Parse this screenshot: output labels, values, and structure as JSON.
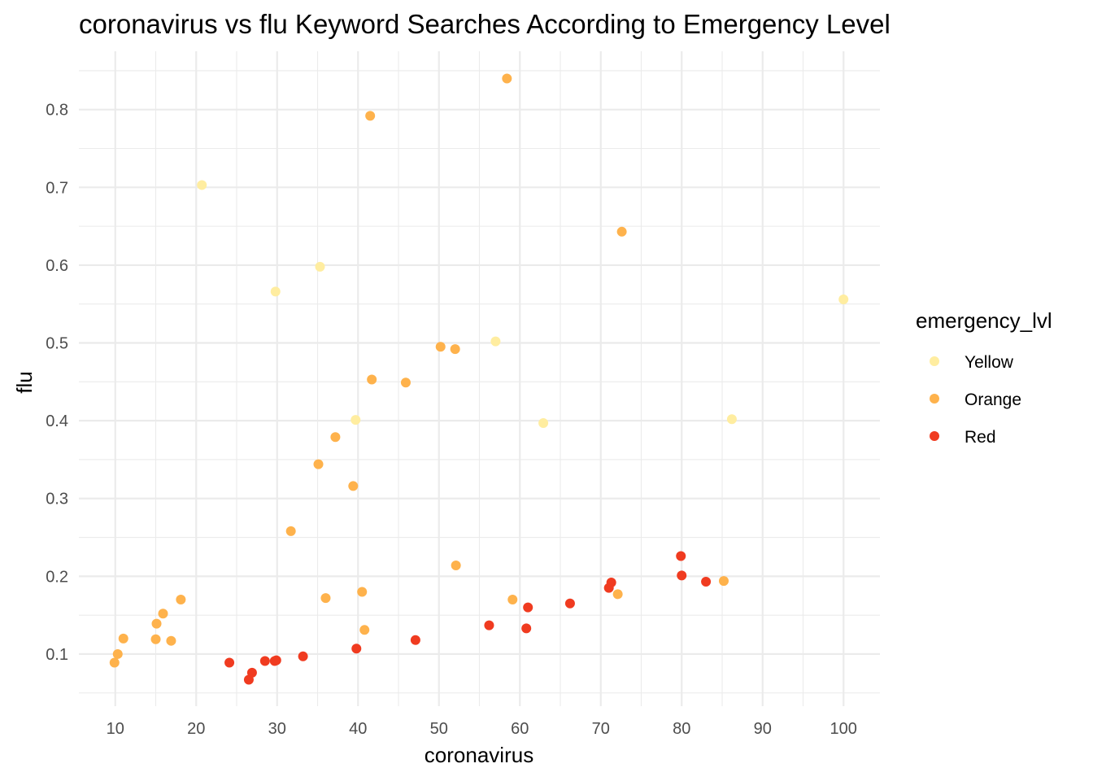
{
  "chart_data": {
    "type": "scatter",
    "title": "coronavirus vs flu Keyword Searches According to Emergency Level",
    "xlabel": "coronavirus",
    "ylabel": "flu",
    "xlim": [
      5.5,
      104.5
    ],
    "ylim": [
      0.033,
      0.875
    ],
    "x_ticks": [
      10,
      20,
      30,
      40,
      50,
      60,
      70,
      80,
      90,
      100
    ],
    "y_ticks": [
      0.1,
      0.2,
      0.3,
      0.4,
      0.5,
      0.6,
      0.7,
      0.8
    ],
    "x_tick_labels": [
      "10",
      "20",
      "30",
      "40",
      "50",
      "60",
      "70",
      "80",
      "90",
      "100"
    ],
    "y_tick_labels": [
      "0.1",
      "0.2",
      "0.3",
      "0.4",
      "0.5",
      "0.6",
      "0.7",
      "0.8"
    ],
    "grid": true,
    "legend": {
      "title": "emergency_lvl",
      "position": "right"
    },
    "series": [
      {
        "name": "Yellow",
        "color": "#FFEDA0",
        "points": [
          [
            20.7,
            0.703
          ],
          [
            29.8,
            0.566
          ],
          [
            35.3,
            0.598
          ],
          [
            39.7,
            0.401
          ],
          [
            57.0,
            0.502
          ],
          [
            62.9,
            0.397
          ],
          [
            86.2,
            0.402
          ],
          [
            100.0,
            0.556
          ]
        ]
      },
      {
        "name": "Orange",
        "color": "#FEB24C",
        "points": [
          [
            9.9,
            0.089
          ],
          [
            10.3,
            0.1
          ],
          [
            11.0,
            0.12
          ],
          [
            15.0,
            0.119
          ],
          [
            15.1,
            0.139
          ],
          [
            15.9,
            0.152
          ],
          [
            16.9,
            0.117
          ],
          [
            18.1,
            0.17
          ],
          [
            31.7,
            0.258
          ],
          [
            35.1,
            0.344
          ],
          [
            36.0,
            0.172
          ],
          [
            37.2,
            0.379
          ],
          [
            39.4,
            0.316
          ],
          [
            40.5,
            0.18
          ],
          [
            40.8,
            0.131
          ],
          [
            41.5,
            0.792
          ],
          [
            41.7,
            0.453
          ],
          [
            45.9,
            0.449
          ],
          [
            50.2,
            0.495
          ],
          [
            52.0,
            0.492
          ],
          [
            52.1,
            0.214
          ],
          [
            58.4,
            0.84
          ],
          [
            59.1,
            0.17
          ],
          [
            72.1,
            0.177
          ],
          [
            72.6,
            0.643
          ],
          [
            85.2,
            0.194
          ]
        ]
      },
      {
        "name": "Red",
        "color": "#F03B20",
        "points": [
          [
            24.1,
            0.089
          ],
          [
            26.5,
            0.067
          ],
          [
            26.9,
            0.076
          ],
          [
            28.5,
            0.091
          ],
          [
            29.7,
            0.091
          ],
          [
            29.9,
            0.092
          ],
          [
            33.2,
            0.097
          ],
          [
            39.8,
            0.107
          ],
          [
            47.1,
            0.118
          ],
          [
            56.2,
            0.137
          ],
          [
            60.8,
            0.133
          ],
          [
            61.0,
            0.16
          ],
          [
            66.2,
            0.165
          ],
          [
            71.0,
            0.185
          ],
          [
            71.3,
            0.192
          ],
          [
            79.9,
            0.226
          ],
          [
            80.0,
            0.201
          ],
          [
            83.0,
            0.193
          ]
        ]
      }
    ]
  }
}
